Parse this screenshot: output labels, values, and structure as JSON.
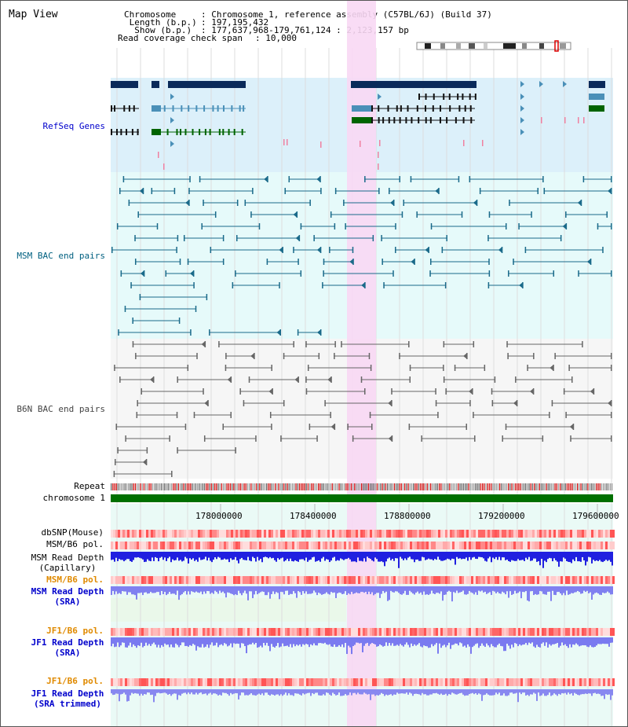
{
  "title": "Map View",
  "header": {
    "chromosome_key": "Chromosome   ",
    "chromosome_val": ": Chromosome 1, reference assembly (C57BL/6J) (Build 37)",
    "length_key": " Length (b.p.)",
    "length_val": ": 197,195,432",
    "show_key": "  Show (b.p.)",
    "show_val": ": 177,637,968-179,761,124 : 2,123,157 bp",
    "span_key": "Read coverage check span",
    "span_val": ": 10,000"
  },
  "tracks": {
    "refseq": "RefSeq Genes",
    "msm_bac": "MSM BAC end pairs",
    "b6n_bac": "B6N BAC end pairs",
    "repeat": "Repeat",
    "chromosome": "chromosome 1",
    "dbsnp": "dbSNP(Mouse)",
    "msm_b6_pol": "MSM/B6 pol.",
    "msm_depth_cap_1": "MSM Read Depth",
    "msm_depth_cap_2": "(Capillary)",
    "msm_b6_pol2": "MSM/B6 pol.",
    "msm_depth_sra_1": "MSM Read Depth",
    "msm_depth_sra_2": "(SRA)",
    "jf1_b6_pol": "JF1/B6 pol.",
    "jf1_depth_sra_1": "JF1 Read Depth",
    "jf1_depth_sra_2": "(SRA)",
    "jf1_b6_pol2": "JF1/B6 pol.",
    "jf1_depth_trim_1": "JF1 Read Depth",
    "jf1_depth_trim_2": "(SRA trimmed)"
  },
  "ruler": {
    "ticks": [
      "178000000",
      "178400000",
      "178800000",
      "179200000",
      "179600000"
    ]
  },
  "colors": {
    "highlight": "#f8d8f4",
    "refseq_bg": "#dcf0fa",
    "msm_bg": "#e6fafa",
    "b6n_bg": "#f6f6f6",
    "gene_dark": "#0a2a5a",
    "gene_mid": "#4a90b8",
    "gene_green": "#006400",
    "msm_line": "#1a6a8a",
    "b6n_line": "#666666",
    "chrom": "#007000",
    "label_blue": "#0000cc",
    "label_orange": "#e08a00",
    "label_teal": "#006080"
  }
}
